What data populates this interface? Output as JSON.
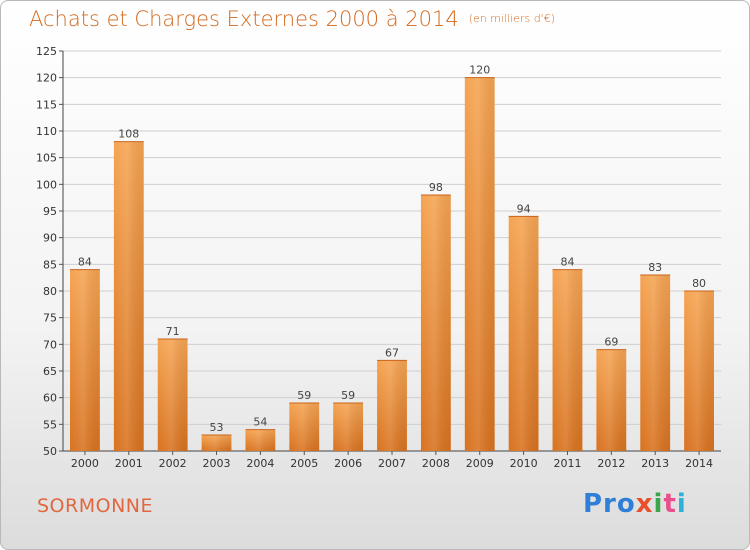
{
  "title_main": "Achats et Charges Externes 2000 à 2014",
  "title_unit": "(en milliers d'€)",
  "place_name": "SORMONNE",
  "logo": {
    "p1": "Pro",
    "p2": "x",
    "p3": "i",
    "p4": "t",
    "p5": "i"
  },
  "colors": {
    "bar_top": "#f5a452",
    "bar_bottom": "#d8721f",
    "title": "#d2691e",
    "place": "#e2673f"
  },
  "chart_data": {
    "type": "bar",
    "title": "Achats et Charges Externes 2000 à 2014",
    "subtitle": "(en milliers d'€)",
    "xlabel": "",
    "ylabel": "",
    "ylim": [
      50,
      125
    ],
    "yticks": [
      50,
      55,
      60,
      65,
      70,
      75,
      80,
      85,
      90,
      95,
      100,
      105,
      110,
      115,
      120,
      125
    ],
    "grid": true,
    "categories": [
      "2000",
      "2001",
      "2002",
      "2003",
      "2004",
      "2005",
      "2006",
      "2007",
      "2008",
      "2009",
      "2010",
      "2011",
      "2012",
      "2013",
      "2014"
    ],
    "values": [
      84,
      108,
      71,
      53,
      54,
      59,
      59,
      67,
      98,
      120,
      94,
      84,
      69,
      83,
      80
    ]
  }
}
